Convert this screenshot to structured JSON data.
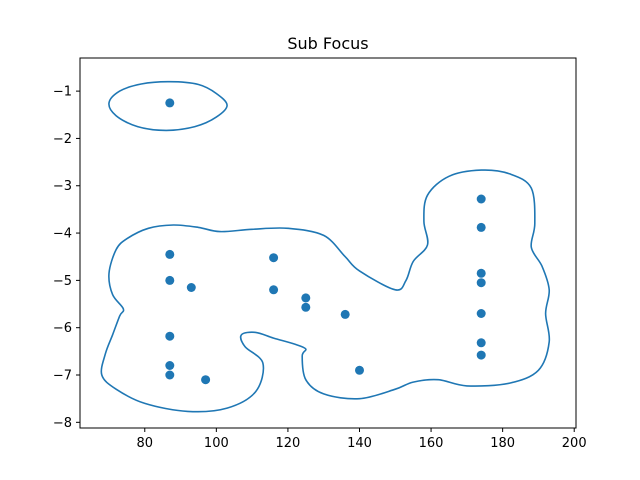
{
  "chart_data": {
    "type": "scatter",
    "title": "Sub Focus",
    "xlabel": "",
    "ylabel": "",
    "xlim": [
      61.9,
      200.5
    ],
    "ylim": [
      -8.12,
      -0.3
    ],
    "xticks": [
      80,
      100,
      120,
      140,
      160,
      180,
      200
    ],
    "yticks": [
      -1,
      -2,
      -3,
      -4,
      -5,
      -6,
      -7,
      -8
    ],
    "grid": false,
    "series": [
      {
        "points": [
          {
            "x": 87,
            "y": -1.25
          },
          {
            "x": 87,
            "y": -4.45
          },
          {
            "x": 87,
            "y": -5.0
          },
          {
            "x": 93,
            "y": -5.15
          },
          {
            "x": 87,
            "y": -6.18
          },
          {
            "x": 87,
            "y": -6.8
          },
          {
            "x": 87,
            "y": -7.0
          },
          {
            "x": 97,
            "y": -7.1
          },
          {
            "x": 116,
            "y": -4.52
          },
          {
            "x": 116,
            "y": -5.2
          },
          {
            "x": 125,
            "y": -5.37
          },
          {
            "x": 125,
            "y": -5.57
          },
          {
            "x": 136,
            "y": -5.72
          },
          {
            "x": 140,
            "y": -6.9
          },
          {
            "x": 174,
            "y": -3.28
          },
          {
            "x": 174,
            "y": -3.88
          },
          {
            "x": 174,
            "y": -4.85
          },
          {
            "x": 174,
            "y": -5.05
          },
          {
            "x": 174,
            "y": -5.7
          },
          {
            "x": 174,
            "y": -6.32
          },
          {
            "x": 174,
            "y": -6.58
          }
        ]
      }
    ],
    "contours": [
      {
        "points": [
          [
            87,
            -0.8
          ],
          [
            95,
            -0.86
          ],
          [
            100,
            -1.05
          ],
          [
            103,
            -1.3
          ],
          [
            100,
            -1.55
          ],
          [
            94,
            -1.75
          ],
          [
            86,
            -1.83
          ],
          [
            78,
            -1.75
          ],
          [
            72,
            -1.52
          ],
          [
            70,
            -1.25
          ],
          [
            73,
            -1.0
          ],
          [
            79,
            -0.85
          ]
        ]
      },
      {
        "points": [
          [
            88,
            -3.83
          ],
          [
            95,
            -3.88
          ],
          [
            101,
            -3.97
          ],
          [
            110,
            -3.92
          ],
          [
            120,
            -3.9
          ],
          [
            130,
            -4.05
          ],
          [
            136,
            -4.5
          ],
          [
            140,
            -4.8
          ],
          [
            150,
            -5.2
          ],
          [
            153,
            -5.0
          ],
          [
            155,
            -4.6
          ],
          [
            159,
            -4.25
          ],
          [
            158,
            -3.75
          ],
          [
            159,
            -3.2
          ],
          [
            165,
            -2.8
          ],
          [
            174,
            -2.67
          ],
          [
            182,
            -2.75
          ],
          [
            188,
            -3.05
          ],
          [
            189,
            -3.8
          ],
          [
            188,
            -4.3
          ],
          [
            191,
            -4.7
          ],
          [
            193,
            -5.2
          ],
          [
            192,
            -5.7
          ],
          [
            193,
            -6.3
          ],
          [
            190,
            -6.9
          ],
          [
            182,
            -7.17
          ],
          [
            170,
            -7.23
          ],
          [
            162,
            -7.1
          ],
          [
            155,
            -7.15
          ],
          [
            150,
            -7.3
          ],
          [
            140,
            -7.5
          ],
          [
            130,
            -7.4
          ],
          [
            125,
            -7.1
          ],
          [
            124,
            -6.6
          ],
          [
            125,
            -6.45
          ],
          [
            122,
            -6.35
          ],
          [
            116,
            -6.22
          ],
          [
            111,
            -6.1
          ],
          [
            107,
            -6.15
          ],
          [
            108,
            -6.4
          ],
          [
            113,
            -6.75
          ],
          [
            111,
            -7.35
          ],
          [
            103,
            -7.7
          ],
          [
            92,
            -7.77
          ],
          [
            80,
            -7.6
          ],
          [
            72,
            -7.3
          ],
          [
            68,
            -7.0
          ],
          [
            69,
            -6.55
          ],
          [
            71,
            -6.15
          ],
          [
            73,
            -5.75
          ],
          [
            74,
            -5.6
          ],
          [
            71,
            -5.3
          ],
          [
            70,
            -4.85
          ],
          [
            72,
            -4.35
          ],
          [
            75,
            -4.12
          ],
          [
            81,
            -3.9
          ]
        ]
      }
    ],
    "colors": {
      "points": "#1f77b4",
      "contour": "#1f77b4"
    }
  }
}
